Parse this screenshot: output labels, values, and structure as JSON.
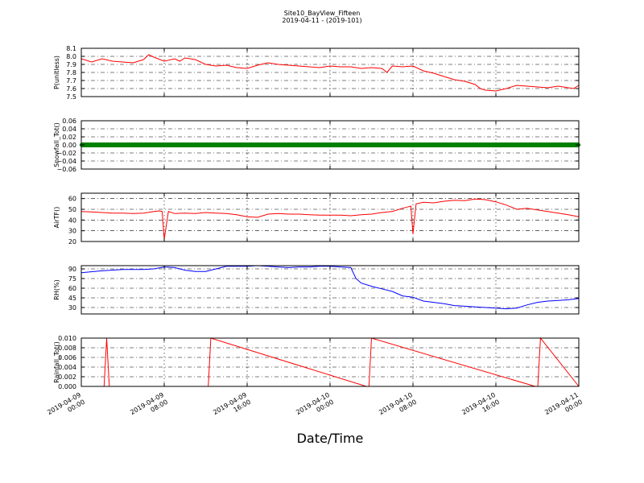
{
  "figure": {
    "title": "Site10_BayView_Fifteen",
    "subtitle": "2019-04-11 - (2019-101)",
    "xlabel": "Date/Time"
  },
  "colors": {
    "red": "#ff0000",
    "green": "#008000",
    "blue": "#0000ff"
  },
  "chart_data": [
    {
      "type": "line",
      "ylabel": "P(unitless)",
      "ylim": [
        7.5,
        8.1
      ],
      "yticks": [
        7.5,
        7.6,
        7.7,
        7.8,
        7.9,
        8.0,
        8.1
      ],
      "ytick_labels": [
        "7.5",
        "7.6",
        "7.7",
        "7.8",
        "7.9",
        "8.0",
        "8.1"
      ],
      "xlim": [
        0,
        48
      ],
      "grid": true,
      "series": [
        {
          "color": "#ff0000",
          "x": [
            0,
            1,
            2,
            3,
            4,
            5,
            6,
            6.5,
            7,
            8,
            9,
            9.5,
            10,
            11,
            12,
            13,
            14,
            15,
            16,
            17,
            18,
            19,
            20,
            21,
            22,
            23,
            24,
            25,
            26,
            27,
            28,
            29,
            29.5,
            30,
            31,
            32,
            33,
            34,
            35,
            36,
            37,
            38,
            38.5,
            39,
            40,
            41,
            42,
            43,
            44,
            45,
            46,
            47,
            47.5,
            48
          ],
          "y": [
            7.97,
            7.93,
            7.97,
            7.94,
            7.93,
            7.92,
            7.96,
            8.02,
            7.99,
            7.94,
            7.97,
            7.94,
            7.98,
            7.96,
            7.9,
            7.88,
            7.89,
            7.86,
            7.85,
            7.89,
            7.92,
            7.9,
            7.89,
            7.88,
            7.87,
            7.86,
            7.88,
            7.87,
            7.87,
            7.85,
            7.86,
            7.85,
            7.8,
            7.88,
            7.87,
            7.88,
            7.82,
            7.79,
            7.75,
            7.71,
            7.69,
            7.65,
            7.6,
            7.58,
            7.57,
            7.6,
            7.64,
            7.63,
            7.62,
            7.61,
            7.63,
            7.61,
            7.6,
            7.64
          ]
        }
      ]
    },
    {
      "type": "line",
      "ylabel": "Snowfall_Tot()",
      "ylim": [
        -0.06,
        0.06
      ],
      "yticks": [
        -0.06,
        -0.04,
        -0.02,
        0.0,
        0.02,
        0.04,
        0.06
      ],
      "ytick_labels": [
        "−0.06",
        "−0.04",
        "−0.02",
        "0.00",
        "0.02",
        "0.04",
        "0.06"
      ],
      "xlim": [
        0,
        48
      ],
      "grid": true,
      "series": [
        {
          "color": "#008000",
          "x": [
            0,
            48
          ],
          "y": [
            0,
            0
          ],
          "markers": true
        }
      ]
    },
    {
      "type": "line",
      "ylabel": "AirTF()",
      "ylim": [
        20,
        65
      ],
      "yticks": [
        20,
        30,
        40,
        50,
        60
      ],
      "ytick_labels": [
        "20",
        "30",
        "40",
        "50",
        "60"
      ],
      "xlim": [
        0,
        48
      ],
      "grid": true,
      "series": [
        {
          "color": "#ff0000",
          "x": [
            0,
            1,
            2,
            3,
            4,
            5,
            6,
            7,
            7.5,
            7.8,
            8.0,
            8.4,
            9,
            10,
            11,
            12,
            13,
            14,
            15,
            16,
            17,
            18,
            19,
            20,
            21,
            22,
            23,
            24,
            25,
            26,
            27,
            28,
            29,
            30,
            31,
            31.6,
            31.8,
            32.0,
            32.3,
            33,
            34,
            35,
            36,
            37,
            38,
            39,
            40,
            41,
            42,
            43,
            44,
            45,
            46,
            47,
            48
          ],
          "y": [
            48,
            47.5,
            47,
            46.5,
            46.5,
            46,
            46.5,
            48,
            48.5,
            48,
            22,
            48,
            46,
            46.5,
            46,
            47,
            46.5,
            46,
            45,
            43,
            42.5,
            45.5,
            46,
            45.5,
            45.5,
            45,
            44.5,
            44.5,
            44.5,
            44,
            45,
            45.5,
            47,
            48,
            51,
            52.5,
            53,
            27,
            55,
            56.5,
            56,
            57.5,
            58.5,
            58,
            59.5,
            59,
            57,
            54,
            50,
            51,
            49.5,
            48,
            46.5,
            45,
            43
          ]
        }
      ]
    },
    {
      "type": "line",
      "ylabel": "RH(%)",
      "ylim": [
        20,
        95
      ],
      "yticks": [
        30,
        45,
        60,
        75,
        90
      ],
      "ytick_labels": [
        "30",
        "45",
        "60",
        "75",
        "90"
      ],
      "xlim": [
        0,
        48
      ],
      "grid": true,
      "series": [
        {
          "color": "#0000ff",
          "x": [
            0,
            2,
            4,
            6,
            7,
            8,
            9,
            10,
            11,
            12,
            13,
            14,
            15,
            16,
            17,
            18,
            19,
            20,
            21,
            22,
            23,
            24,
            25,
            26,
            26.5,
            27,
            28,
            29,
            30,
            31,
            32,
            33,
            34,
            35,
            36,
            37,
            38,
            39,
            40,
            41,
            42,
            43,
            44,
            45,
            46,
            47,
            48
          ],
          "y": [
            84,
            87,
            89,
            89,
            90,
            93,
            92,
            88,
            86,
            86,
            90,
            94,
            94,
            94,
            95,
            94,
            93,
            92,
            93,
            93,
            94,
            94,
            93,
            92,
            75,
            68,
            63,
            59,
            55,
            48,
            46,
            40,
            38,
            36,
            33,
            32,
            31,
            30,
            29,
            28,
            29,
            34,
            38,
            40,
            41,
            42,
            44
          ]
        }
      ]
    },
    {
      "type": "line",
      "ylabel": "Rainfall_Tot()",
      "ylim": [
        0,
        0.01
      ],
      "yticks": [
        0.0,
        0.002,
        0.004,
        0.006,
        0.008,
        0.01
      ],
      "ytick_labels": [
        "0.000",
        "0.002",
        "0.004",
        "0.006",
        "0.008",
        "0.010"
      ],
      "xlim": [
        0,
        48
      ],
      "grid": true,
      "series": [
        {
          "color": "#ff0000",
          "x": [
            0,
            2.2,
            2.45,
            2.7,
            12.0,
            12.25,
            12.5,
            27.5,
            27.75,
            28.0,
            43.8,
            44.05,
            44.3,
            48
          ],
          "y": [
            0,
            0,
            0.01,
            0,
            0,
            0,
            0.01,
            0,
            0,
            0.01,
            0,
            0,
            0.01,
            0
          ]
        }
      ]
    }
  ],
  "x_axis": {
    "ticks": [
      0,
      8,
      16,
      24,
      32,
      40,
      48
    ],
    "tick_labels": [
      [
        "2019-04-09",
        "00:00"
      ],
      [
        "2019-04-09",
        "08:00"
      ],
      [
        "2019-04-09",
        "16:00"
      ],
      [
        "2019-04-10",
        "00:00"
      ],
      [
        "2019-04-10",
        "08:00"
      ],
      [
        "2019-04-10",
        "16:00"
      ],
      [
        "2019-04-11",
        "00:00"
      ]
    ]
  }
}
